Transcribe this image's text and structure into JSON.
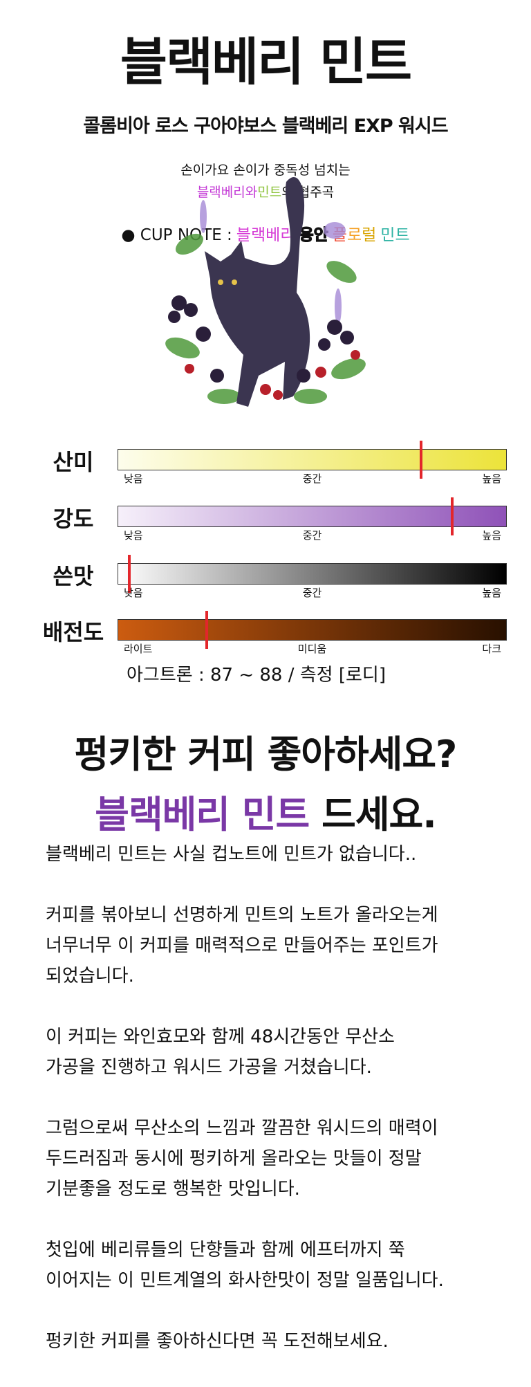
{
  "header": {
    "title": "블랙베리 민트",
    "subtitle": "콜롬비아 로스 구아야보스 블랙베리 EXP 워시드",
    "tagline_1": "손이가요 손이가 중독성 넘치는",
    "tagline_2": [
      {
        "text": "블랙베리와",
        "color": "#c43bd6"
      },
      {
        "text": "민트",
        "color": "#8fc43f"
      },
      {
        "text": "의 협주곡",
        "color": "#111111"
      }
    ]
  },
  "cup_note": {
    "label": "● CUP NOTE :",
    "notes": [
      {
        "text": "블랙베리",
        "color": "#d63bd6"
      },
      {
        "text": "용안",
        "color": "outline"
      },
      {
        "text": "플",
        "color": "#f0503a"
      },
      {
        "text": "로",
        "color": "#f5a024"
      },
      {
        "text": "럴",
        "color": "#d9a400"
      },
      {
        "text": "민트",
        "color": "#2fb3a4"
      }
    ]
  },
  "value_range": [
    0,
    100
  ],
  "gauges": [
    {
      "label": "산미",
      "low": "낮음",
      "mid": "중간",
      "high": "높음",
      "value": 78,
      "colors": [
        "#fdfdec",
        "#ece33a"
      ]
    },
    {
      "label": "강도",
      "low": "낮음",
      "mid": "중간",
      "high": "높음",
      "value": 86,
      "colors": [
        "#f6f0fa",
        "#8f52b8"
      ]
    },
    {
      "label": "쓴맛",
      "low": "낮음",
      "mid": "중간",
      "high": "높음",
      "value": 3,
      "colors": [
        "#ffffff",
        "#000000"
      ]
    },
    {
      "label": "배전도",
      "low": "라이트",
      "mid": "미디움",
      "high": "다크",
      "value": 23,
      "colors": [
        "#cc5c10",
        "#281000"
      ]
    }
  ],
  "agtron": "아그트론 : 87 ~ 88 / 측정 [로디]",
  "headline": {
    "line_1": "펑키한 커피 좋아하세요?",
    "line_2": [
      {
        "text": "블랙베리 민트",
        "color": "#7a38a6"
      },
      {
        "text": "드세요.",
        "color": "#111111"
      }
    ]
  },
  "body": [
    [
      "블랙베리 민트는 사실 컵노트에 민트가 없습니다.."
    ],
    [
      "커피를 볶아보니 선명하게 민트의 노트가 올라오는게",
      "너무너무 이 커피를 매력적으로 만들어주는 포인트가",
      "되었습니다."
    ],
    [
      "이 커피는 와인효모와 함께 48시간동안 무산소",
      "가공을 진행하고 워시드 가공을 거쳤습니다."
    ],
    [
      "그럼으로써 무산소의 느낌과 깔끔한 워시드의 매력이",
      "두드러짐과 동시에 펑키하게 올라오는 맛들이 정말",
      "기분좋을 정도로 행복한 맛입니다."
    ],
    [
      "첫입에 베리류들의 단향들과 함께 에프터까지 쭉",
      "이어지는 이 민트계열의 화사한맛이 정말 일품입니다."
    ],
    [
      "펑키한 커피를 좋아하신다면 꼭 도전해보세요."
    ]
  ]
}
